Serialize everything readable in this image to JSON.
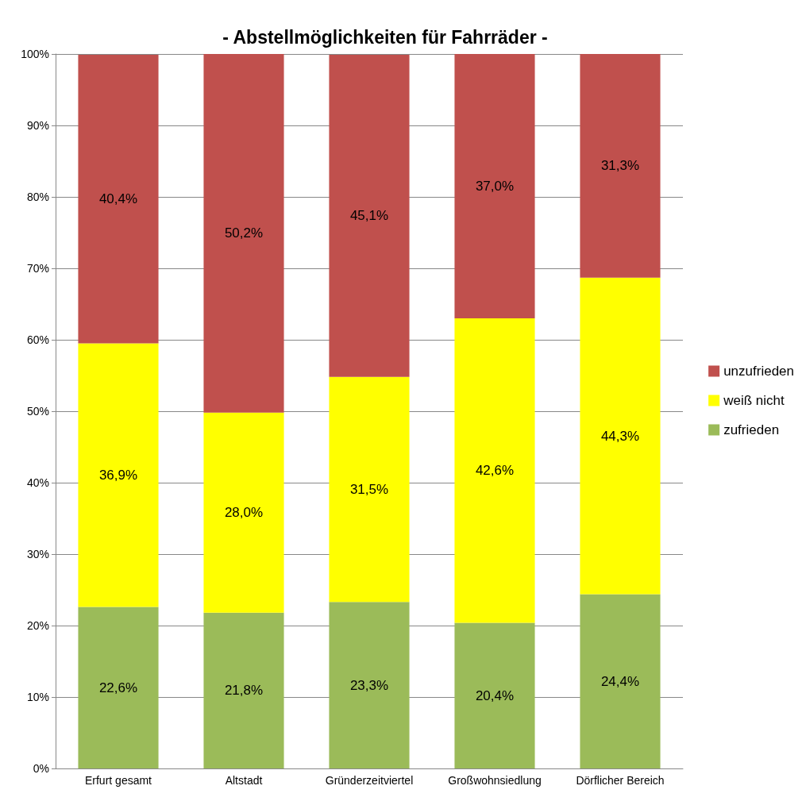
{
  "chart_data": {
    "type": "bar",
    "title": "- Abstellmöglichkeiten für Fahrräder -",
    "categories": [
      "Erfurt gesamt",
      "Altstadt",
      "Gründerzeitviertel",
      "Großwohnsiedlung",
      "Dörflicher Bereich"
    ],
    "stacked": true,
    "series": [
      {
        "name": "zufrieden",
        "color": "#9bbb59",
        "values": [
          22.6,
          21.8,
          23.3,
          20.4,
          24.4
        ],
        "value_labels": [
          "22,6%",
          "21,8%",
          "23,3%",
          "20,4%",
          "24,4%"
        ]
      },
      {
        "name": "weiß nicht",
        "color": "#ffff00",
        "values": [
          36.9,
          28.0,
          31.5,
          42.6,
          44.3
        ],
        "value_labels": [
          "36,9%",
          "28,0%",
          "31,5%",
          "42,6%",
          "44,3%"
        ]
      },
      {
        "name": "unzufrieden",
        "color": "#c0504d",
        "values": [
          40.4,
          50.2,
          45.1,
          37.0,
          31.3
        ],
        "value_labels": [
          "40,4%",
          "50,2%",
          "45,1%",
          "37,0%",
          "31,3%"
        ]
      }
    ],
    "ylim": [
      0,
      100
    ],
    "yticks": [
      {
        "value": 0,
        "label": "0%"
      },
      {
        "value": 10,
        "label": "10%"
      },
      {
        "value": 20,
        "label": "20%"
      },
      {
        "value": 30,
        "label": "30%"
      },
      {
        "value": 40,
        "label": "40%"
      },
      {
        "value": 50,
        "label": "50%"
      },
      {
        "value": 60,
        "label": "60%"
      },
      {
        "value": 70,
        "label": "70%"
      },
      {
        "value": 80,
        "label": "80%"
      },
      {
        "value": 90,
        "label": "90%"
      },
      {
        "value": 100,
        "label": "100%"
      }
    ],
    "grid": "y",
    "legend": "right"
  }
}
